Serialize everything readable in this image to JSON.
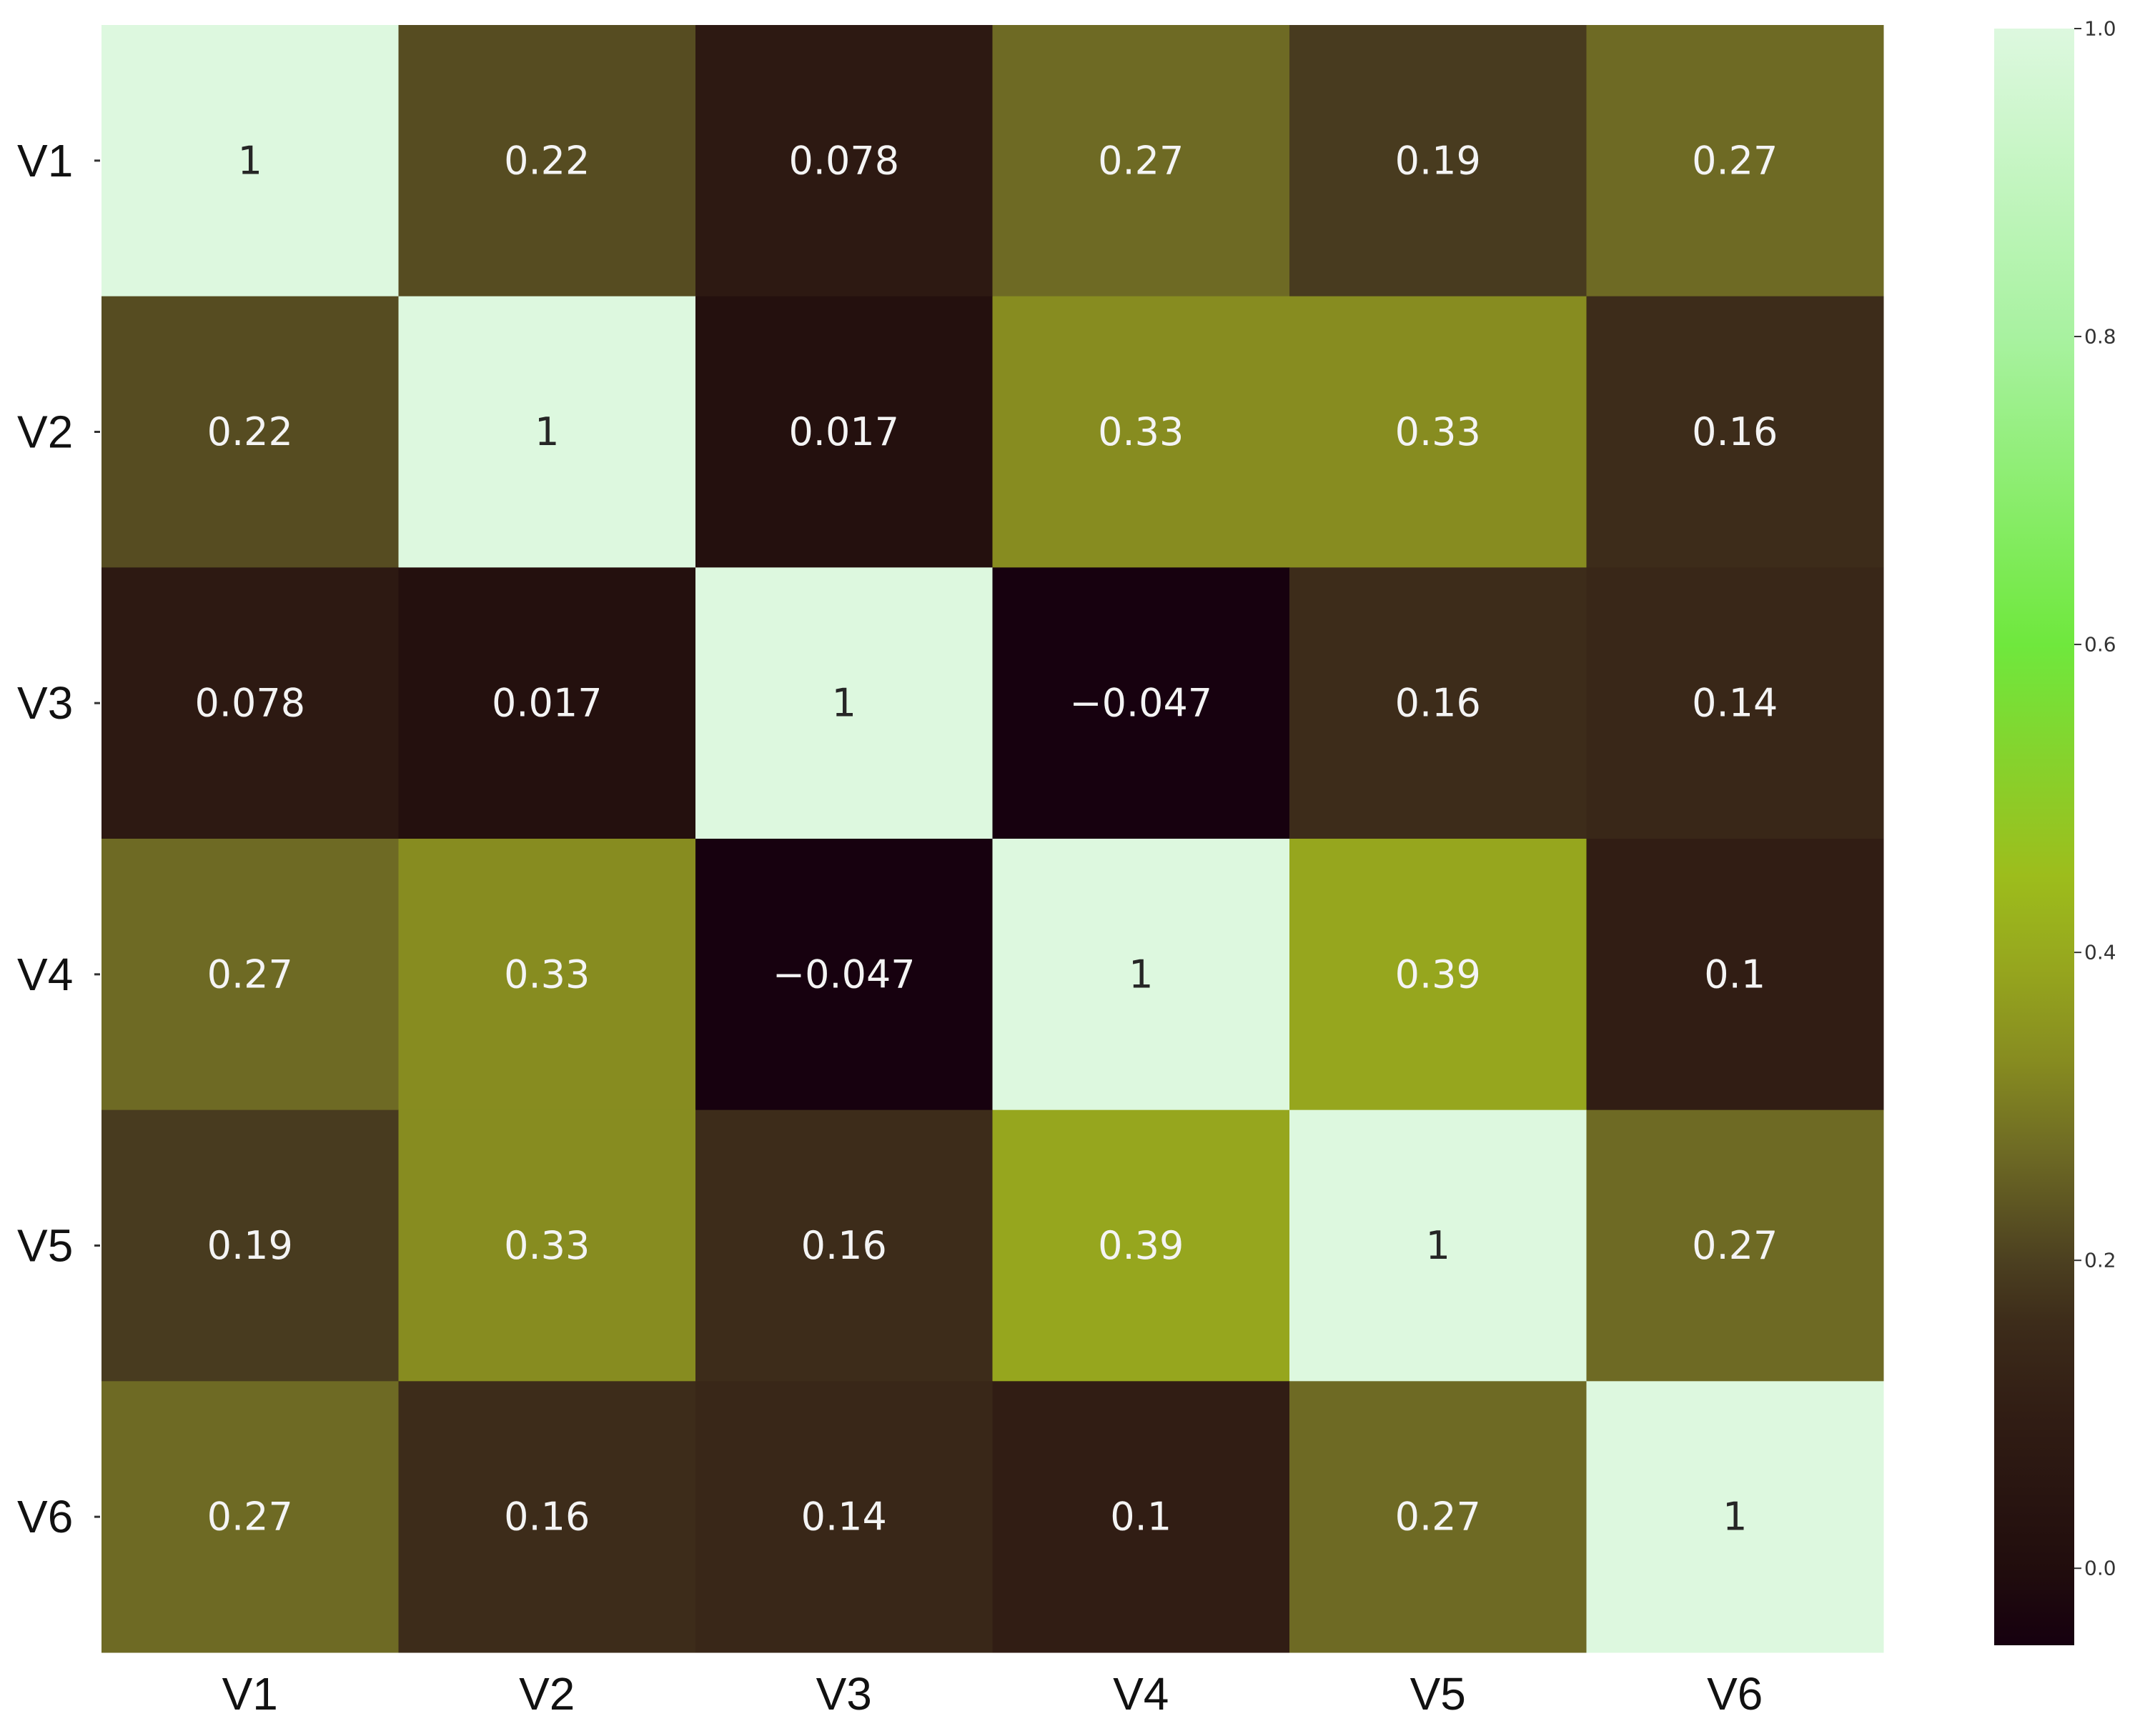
{
  "chart_data": {
    "type": "heatmap",
    "title": "",
    "xlabel": "",
    "ylabel": "",
    "x_categories": [
      "V1",
      "V2",
      "V3",
      "V4",
      "V5",
      "V6"
    ],
    "y_categories": [
      "V1",
      "V2",
      "V3",
      "V4",
      "V5",
      "V6"
    ],
    "values": [
      [
        1,
        0.22,
        0.078,
        0.27,
        0.19,
        0.27
      ],
      [
        0.22,
        1,
        0.017,
        0.33,
        0.33,
        0.16
      ],
      [
        0.078,
        0.017,
        1,
        -0.047,
        0.16,
        0.14
      ],
      [
        0.27,
        0.33,
        -0.047,
        1,
        0.39,
        0.1
      ],
      [
        0.19,
        0.33,
        0.16,
        0.39,
        1,
        0.27
      ],
      [
        0.27,
        0.16,
        0.14,
        0.1,
        0.27,
        1
      ]
    ],
    "cell_labels": [
      [
        "1",
        "0.22",
        "0.078",
        "0.27",
        "0.19",
        "0.27"
      ],
      [
        "0.22",
        "1",
        "0.017",
        "0.33",
        "0.33",
        "0.16"
      ],
      [
        "0.078",
        "0.017",
        "1",
        "−0.047",
        "0.16",
        "0.14"
      ],
      [
        "0.27",
        "0.33",
        "−0.047",
        "1",
        "0.39",
        "0.1"
      ],
      [
        "0.19",
        "0.33",
        "0.16",
        "0.39",
        "1",
        "0.27"
      ],
      [
        "0.27",
        "0.16",
        "0.14",
        "0.1",
        "0.27",
        "1"
      ]
    ],
    "colorbar": {
      "range": [
        -0.05,
        1.0
      ],
      "ticks": [
        0.0,
        0.2,
        0.4,
        0.6,
        0.8,
        1.0
      ],
      "tick_labels": [
        "0.0",
        "0.2",
        "0.4",
        "0.6",
        "0.8",
        "1.0"
      ],
      "colors": [
        {
          "v": -0.05,
          "c": "#16000f"
        },
        {
          "v": 0.0,
          "c": "#210d0d"
        },
        {
          "v": 0.1,
          "c": "#311d14"
        },
        {
          "v": 0.16,
          "c": "#3d2c1a"
        },
        {
          "v": 0.2,
          "c": "#4c4020"
        },
        {
          "v": 0.27,
          "c": "#6e6a24"
        },
        {
          "v": 0.33,
          "c": "#878c20"
        },
        {
          "v": 0.39,
          "c": "#96a61e"
        },
        {
          "v": 0.45,
          "c": "#9dbd1c"
        },
        {
          "v": 0.6,
          "c": "#6fe83d"
        },
        {
          "v": 0.8,
          "c": "#a8f2a0"
        },
        {
          "v": 1.0,
          "c": "#ddf8df"
        }
      ],
      "placement": "right"
    },
    "grid": false
  }
}
